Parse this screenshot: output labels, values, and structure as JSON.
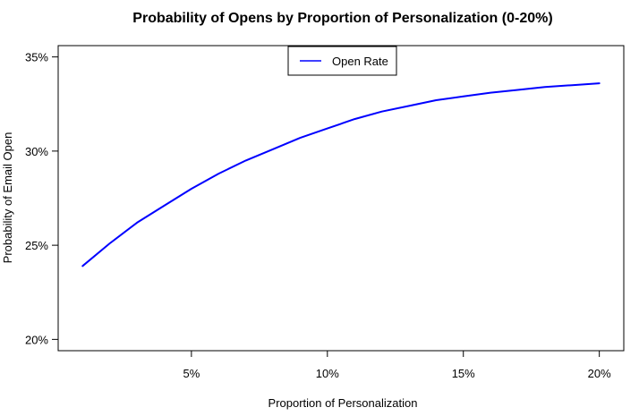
{
  "chart_data": {
    "type": "line",
    "title": "Probability of Opens by Proportion of Personalization (0-20%)",
    "xlabel": "Proportion of Personalization",
    "ylabel": "Probability of Email Open",
    "xlim": [
      0.1,
      20.9
    ],
    "ylim": [
      19.4,
      35.6
    ],
    "x_ticks": [
      5,
      10,
      15,
      20
    ],
    "x_tick_labels": [
      "5%",
      "10%",
      "15%",
      "20%"
    ],
    "y_ticks": [
      20,
      25,
      30,
      35
    ],
    "y_tick_labels": [
      "20%",
      "25%",
      "30%",
      "35%"
    ],
    "grid": false,
    "legend_position": "top-center",
    "series": [
      {
        "name": "Open Rate",
        "color": "#0000ff",
        "x": [
          1,
          2,
          3,
          4,
          5,
          6,
          7,
          8,
          9,
          10,
          11,
          12,
          13,
          14,
          15,
          16,
          17,
          18,
          19,
          20
        ],
        "y": [
          23.9,
          25.1,
          26.2,
          27.1,
          28.0,
          28.8,
          29.5,
          30.1,
          30.7,
          31.2,
          31.7,
          32.1,
          32.4,
          32.7,
          32.9,
          33.1,
          33.25,
          33.4,
          33.5,
          33.6
        ]
      }
    ]
  }
}
